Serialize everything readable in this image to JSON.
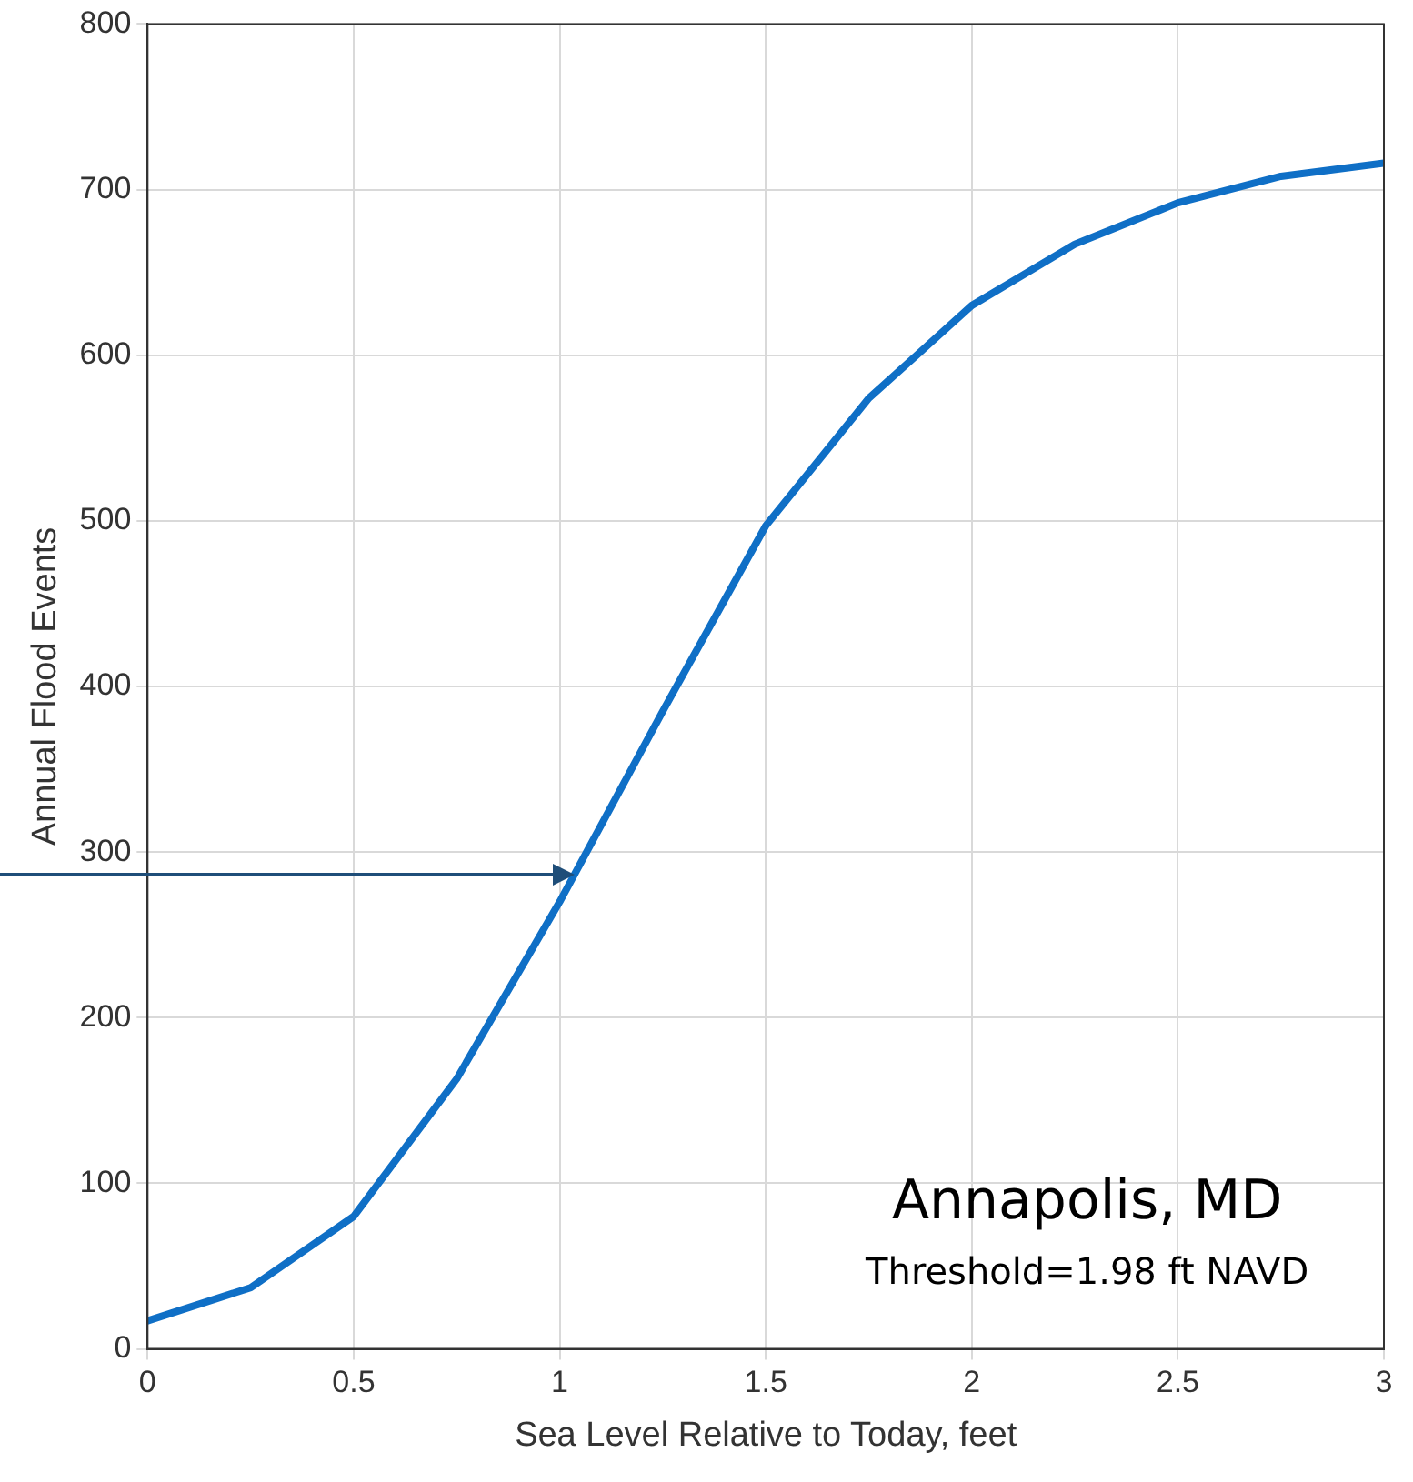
{
  "chart_data": {
    "type": "line",
    "xlabel": "Sea Level Relative to Today, feet",
    "ylabel": "Annual Flood Events",
    "x": [
      0,
      0.25,
      0.5,
      0.75,
      1,
      1.25,
      1.5,
      1.75,
      2,
      2.25,
      2.5,
      2.75,
      3
    ],
    "series": [
      {
        "color": "#0f6fc6",
        "values": [
          17,
          37,
          80,
          163,
          270,
          385,
          497,
          574,
          630,
          667,
          692,
          708,
          716
        ]
      }
    ],
    "xlim": [
      0,
      3
    ],
    "xticks": [
      0,
      0.5,
      1,
      1.5,
      2,
      2.5,
      3
    ],
    "ylim": [
      0,
      800
    ],
    "yticks": [
      0,
      100,
      200,
      300,
      400,
      500,
      600,
      700,
      800
    ],
    "grid": true,
    "marker": "none",
    "line_style": "solid",
    "annotations": [
      "Annapolis, MD",
      "Threshold=1.98 ft NAVD"
    ]
  }
}
